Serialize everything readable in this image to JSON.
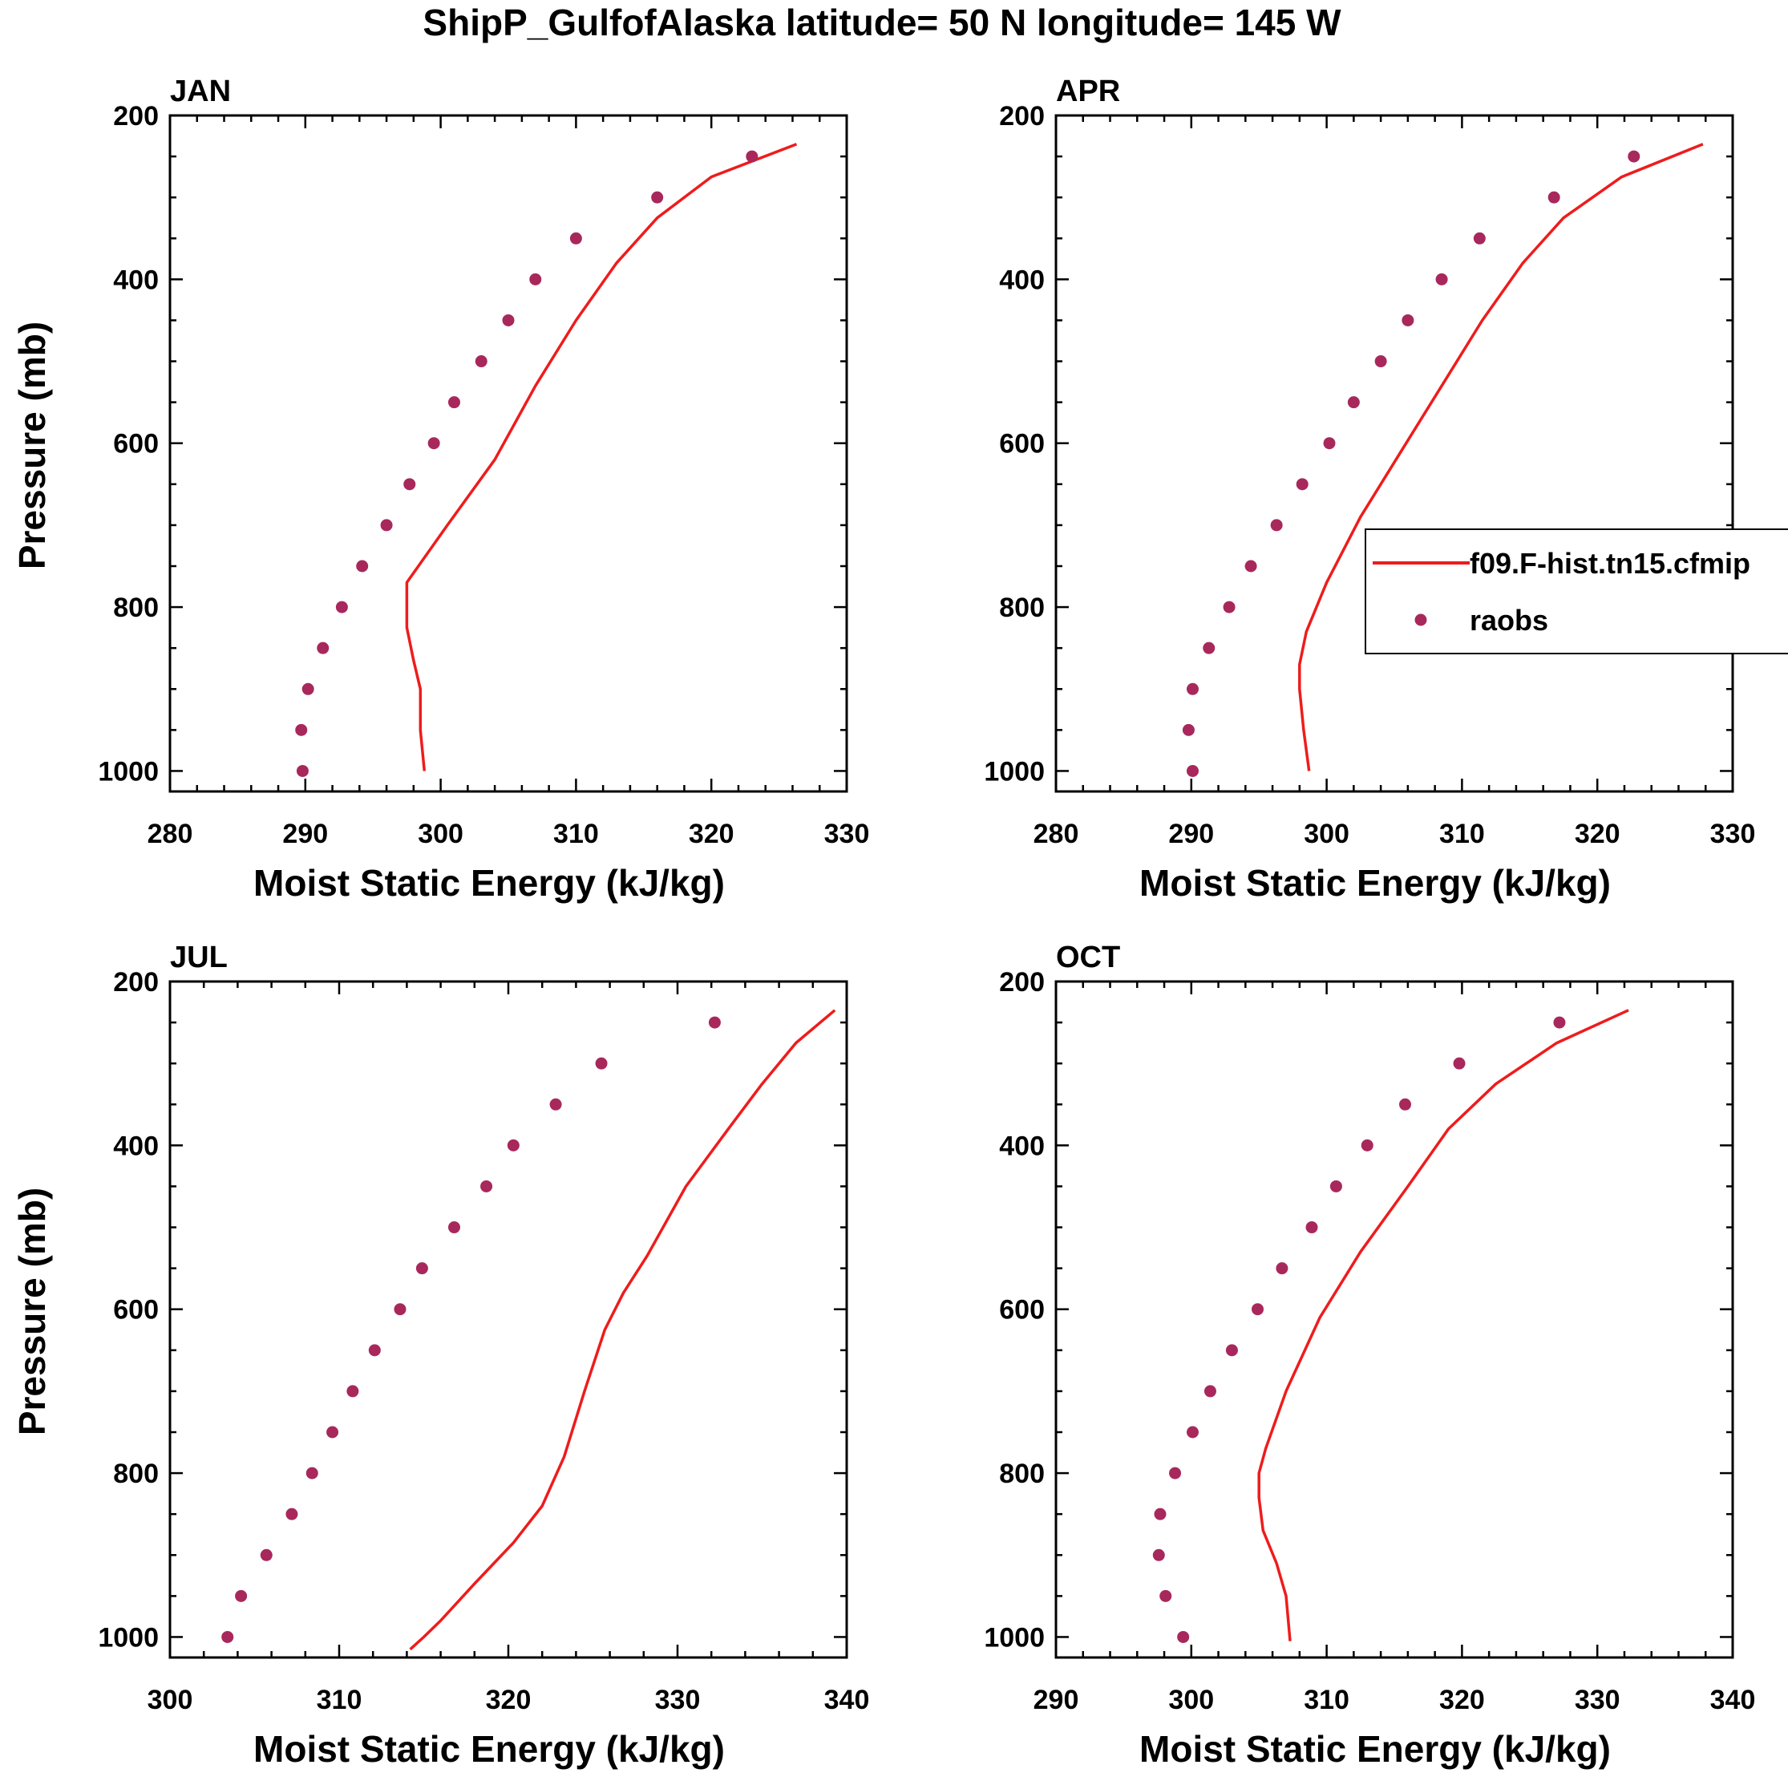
{
  "figure": {
    "title": "ShipP_GulfofAlaska  latitude= 50 N longitude= 145 W"
  },
  "legend": {
    "entries": [
      {
        "label": "f09.F-hist.tn15.cfmip",
        "style": "line"
      },
      {
        "label": "raobs",
        "style": "marker"
      }
    ]
  },
  "colors": {
    "model_line": "#ee1c1c",
    "obs_marker": "#a8285c",
    "axis": "#000000"
  },
  "chart_data": [
    {
      "type": "line",
      "panel": "JAN",
      "title": "JAN",
      "xlabel": "Moist Static Energy (kJ/kg)",
      "ylabel": "Pressure (mb)",
      "xlim": [
        280,
        330
      ],
      "xticks": [
        280,
        290,
        300,
        310,
        320,
        330
      ],
      "ylim": [
        200,
        1025
      ],
      "yticks": [
        200,
        400,
        600,
        800,
        1000
      ],
      "y_reversed": true,
      "series": [
        {
          "name": "f09.F-hist.tn15.cfmip",
          "style": "line",
          "x": [
            326.3,
            320.0,
            316.0,
            313.0,
            310.0,
            307.0,
            304.0,
            300.5,
            297.5,
            297.5,
            298.0,
            298.5,
            298.5,
            298.8
          ],
          "y": [
            235,
            275,
            325,
            380,
            450,
            530,
            620,
            700,
            770,
            825,
            865,
            900,
            950,
            1000
          ]
        },
        {
          "name": "raobs",
          "style": "marker",
          "x": [
            323.0,
            316.0,
            310.0,
            307.0,
            305.0,
            303.0,
            301.0,
            299.5,
            297.7,
            296.0,
            294.2,
            292.7,
            291.3,
            290.2,
            289.7,
            289.8
          ],
          "y": [
            250,
            300,
            350,
            400,
            450,
            500,
            550,
            600,
            650,
            700,
            750,
            800,
            850,
            900,
            950,
            1000
          ]
        }
      ]
    },
    {
      "type": "line",
      "panel": "APR",
      "title": "APR",
      "xlabel": "Moist Static Energy (kJ/kg)",
      "ylabel": "",
      "xlim": [
        280,
        330
      ],
      "xticks": [
        280,
        290,
        300,
        310,
        320,
        330
      ],
      "ylim": [
        200,
        1025
      ],
      "yticks": [
        200,
        400,
        600,
        800,
        1000
      ],
      "y_reversed": true,
      "series": [
        {
          "name": "f09.F-hist.tn15.cfmip",
          "style": "line",
          "x": [
            327.8,
            321.8,
            317.5,
            314.5,
            311.5,
            308.5,
            305.5,
            302.5,
            300.0,
            298.5,
            298.0,
            298.0,
            298.3,
            298.7
          ],
          "y": [
            235,
            275,
            325,
            380,
            450,
            530,
            610,
            690,
            770,
            830,
            870,
            900,
            950,
            1000
          ]
        },
        {
          "name": "raobs",
          "style": "marker",
          "x": [
            322.7,
            316.8,
            311.3,
            308.5,
            306.0,
            304.0,
            302.0,
            300.2,
            298.2,
            296.3,
            294.4,
            292.8,
            291.3,
            290.1,
            289.8,
            290.1
          ],
          "y": [
            250,
            300,
            350,
            400,
            450,
            500,
            550,
            600,
            650,
            700,
            750,
            800,
            850,
            900,
            950,
            1000
          ]
        }
      ]
    },
    {
      "type": "line",
      "panel": "JUL",
      "title": "JUL",
      "xlabel": "Moist Static Energy (kJ/kg)",
      "ylabel": "Pressure (mb)",
      "xlim": [
        300,
        340
      ],
      "xticks": [
        300,
        310,
        320,
        330,
        340
      ],
      "ylim": [
        200,
        1025
      ],
      "yticks": [
        200,
        400,
        600,
        800,
        1000
      ],
      "y_reversed": true,
      "series": [
        {
          "name": "f09.F-hist.tn15.cfmip",
          "style": "line",
          "x": [
            339.3,
            337.0,
            335.0,
            333.0,
            330.5,
            328.2,
            326.8,
            325.7,
            324.5,
            323.3,
            322.0,
            320.3,
            318.0,
            316.0,
            315.0,
            314.2
          ],
          "y": [
            235,
            275,
            325,
            380,
            450,
            535,
            580,
            625,
            700,
            780,
            840,
            885,
            935,
            980,
            1000,
            1015
          ]
        },
        {
          "name": "raobs",
          "style": "marker",
          "x": [
            332.2,
            325.5,
            322.8,
            320.3,
            318.7,
            316.8,
            314.9,
            313.6,
            312.1,
            310.8,
            309.6,
            308.4,
            307.2,
            305.7,
            304.2,
            303.4
          ],
          "y": [
            250,
            300,
            350,
            400,
            450,
            500,
            550,
            600,
            650,
            700,
            750,
            800,
            850,
            900,
            950,
            1000
          ]
        }
      ]
    },
    {
      "type": "line",
      "panel": "OCT",
      "title": "OCT",
      "xlabel": "Moist Static Energy (kJ/kg)",
      "ylabel": "",
      "xlim": [
        290,
        340
      ],
      "xticks": [
        290,
        300,
        310,
        320,
        330,
        340
      ],
      "ylim": [
        200,
        1025
      ],
      "yticks": [
        200,
        400,
        600,
        800,
        1000
      ],
      "y_reversed": true,
      "series": [
        {
          "name": "f09.F-hist.tn15.cfmip",
          "style": "line",
          "x": [
            332.3,
            327.0,
            322.5,
            319.0,
            316.0,
            312.5,
            309.5,
            307.0,
            305.5,
            305.0,
            305.0,
            305.3,
            306.3,
            307.0,
            307.3
          ],
          "y": [
            235,
            275,
            325,
            380,
            450,
            530,
            610,
            700,
            770,
            800,
            830,
            870,
            910,
            950,
            1005
          ]
        },
        {
          "name": "raobs",
          "style": "marker",
          "x": [
            327.2,
            319.8,
            315.8,
            313.0,
            310.7,
            308.9,
            306.7,
            304.9,
            303.0,
            301.4,
            300.1,
            298.8,
            297.7,
            297.6,
            298.1,
            299.4
          ],
          "y": [
            250,
            300,
            350,
            400,
            450,
            500,
            550,
            600,
            650,
            700,
            750,
            800,
            850,
            900,
            950,
            1000
          ]
        }
      ]
    }
  ]
}
